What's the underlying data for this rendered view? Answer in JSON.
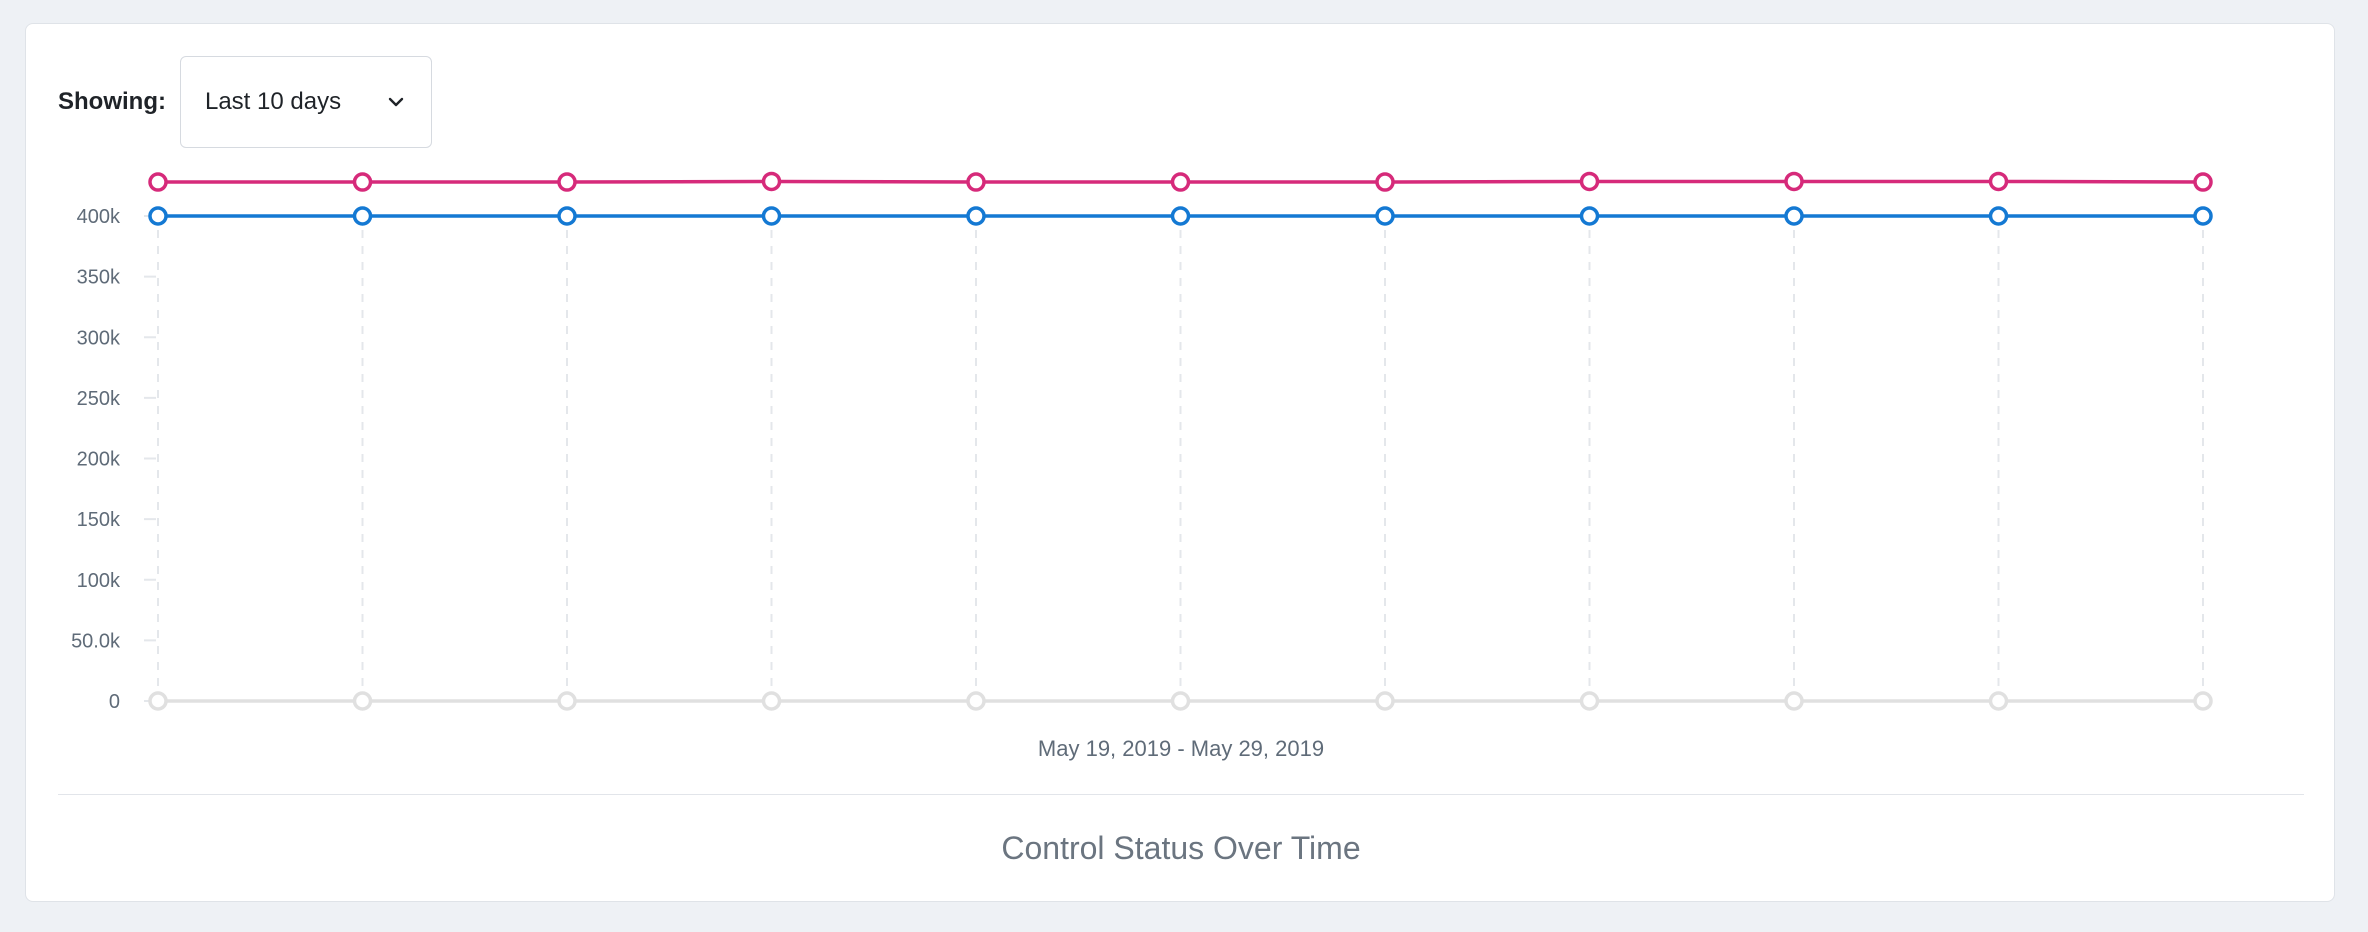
{
  "filter": {
    "label": "Showing:",
    "selected": "Last 10 days",
    "chevron_icon": "chevron-down-icon"
  },
  "chart_data": {
    "type": "line",
    "x": [
      "2019-05-19",
      "2019-05-20",
      "2019-05-21",
      "2019-05-22",
      "2019-05-23",
      "2019-05-24",
      "2019-05-25",
      "2019-05-26",
      "2019-05-27",
      "2019-05-28",
      "2019-05-29"
    ],
    "xlabel": "May 19, 2019 - May 29, 2019",
    "ylabel": "",
    "ylim": [
      0,
      400000
    ],
    "yticks": [
      "0",
      "50.0k",
      "100k",
      "150k",
      "200k",
      "250k",
      "300k",
      "350k",
      "400k"
    ],
    "ytick_values": [
      0,
      50000,
      100000,
      150000,
      200000,
      250000,
      300000,
      350000,
      400000
    ],
    "grid": "vertical dashed",
    "series": [
      {
        "color": "#d62a7a",
        "values": [
          428000,
          428000,
          428000,
          428500,
          428000,
          428000,
          428000,
          428500,
          428500,
          428500,
          428000
        ]
      },
      {
        "color": "#1479d3",
        "values": [
          400000,
          400000,
          400000,
          400000,
          400000,
          400000,
          400000,
          400000,
          400000,
          400000,
          400000
        ]
      },
      {
        "color": "#e0e0e0",
        "values": [
          0,
          0,
          0,
          0,
          0,
          0,
          0,
          0,
          0,
          0,
          0
        ]
      }
    ]
  },
  "footer": {
    "title": "Control Status Over Time"
  }
}
